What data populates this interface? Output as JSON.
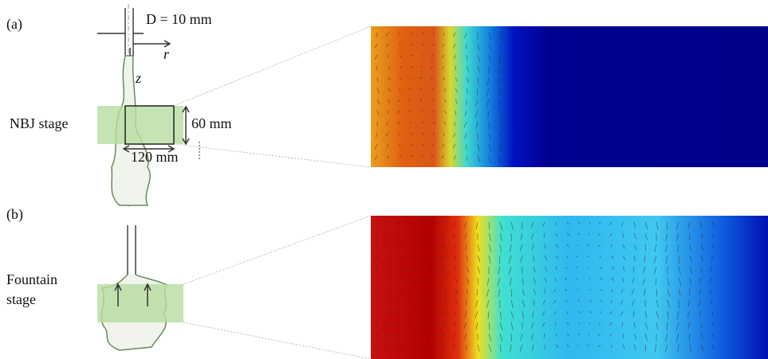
{
  "panel_a": {
    "label": "(a)",
    "diameter": "D = 10 mm",
    "r_axis": "r",
    "z_axis": "z",
    "stage": "NBJ stage",
    "height": "60 mm",
    "width": "120 mm"
  },
  "panel_b": {
    "label": "(b)",
    "stage_lines": [
      "Fountain",
      "stage"
    ]
  }
}
